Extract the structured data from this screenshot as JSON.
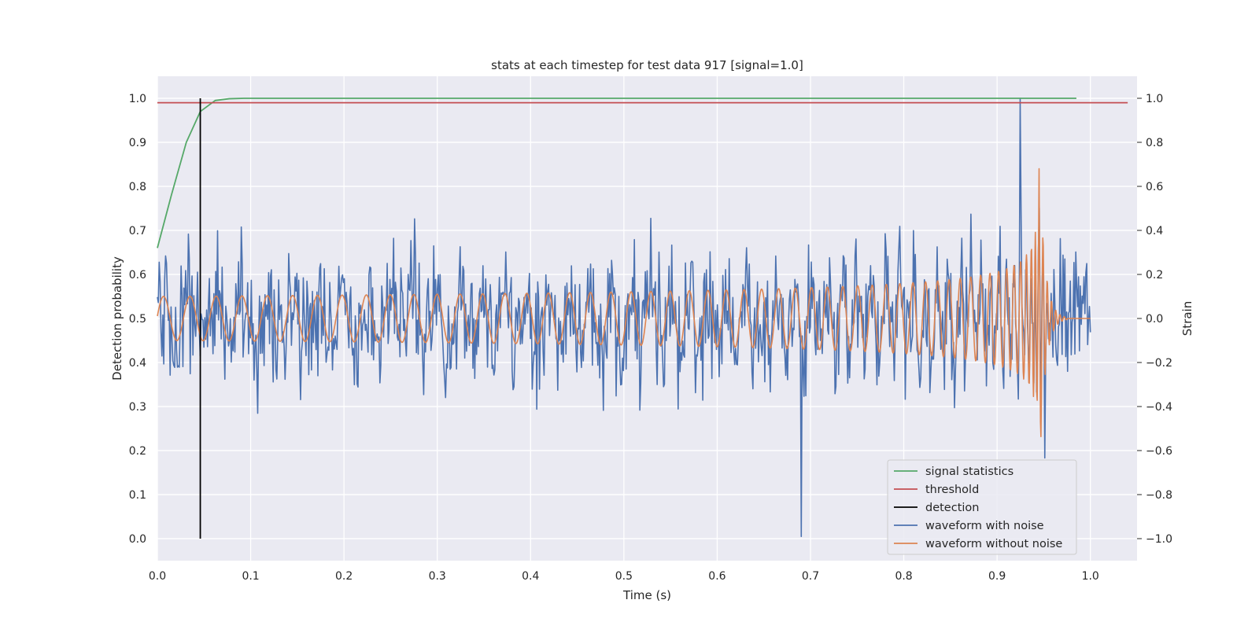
{
  "chart_data": {
    "type": "line",
    "title": "stats at each timestep for test data 917 [signal=1.0]",
    "xlabel": "Time (s)",
    "ylabel_left": "Detection probability",
    "ylabel_right": "Strain",
    "xlim": [
      0.0,
      1.05
    ],
    "ylim_left": [
      -0.05,
      1.05
    ],
    "ylim_right": [
      -1.1,
      1.1
    ],
    "x_ticks": [
      "0.0",
      "0.1",
      "0.2",
      "0.3",
      "0.4",
      "0.5",
      "0.6",
      "0.7",
      "0.8",
      "0.9",
      "1.0"
    ],
    "y_ticks_left": [
      "0.0",
      "0.1",
      "0.2",
      "0.3",
      "0.4",
      "0.5",
      "0.6",
      "0.7",
      "0.8",
      "0.9",
      "1.0"
    ],
    "y_ticks_right": [
      "−1.0",
      "−0.8",
      "−0.6",
      "−0.4",
      "−0.2",
      "0.0",
      "0.2",
      "0.4",
      "0.6",
      "0.8",
      "1.0"
    ],
    "grid": true,
    "legend_position": "bottom-right",
    "colors": {
      "signal_statistics": "#55a868",
      "threshold": "#c44e52",
      "detection": "#000000",
      "waveform_with_noise": "#4c72b0",
      "waveform_without_noise": "#dd8452",
      "axes_background": "#eaeaf2",
      "grid": "#ffffff"
    },
    "series": [
      {
        "name": "signal statistics",
        "axis": "left",
        "x": [
          0.0,
          0.015,
          0.031,
          0.046,
          0.062,
          0.077,
          0.093,
          0.108,
          0.5,
          0.985
        ],
        "y": [
          0.66,
          0.78,
          0.9,
          0.97,
          0.995,
          0.999,
          1.0,
          1.0,
          1.0,
          1.0
        ]
      },
      {
        "name": "threshold",
        "axis": "left",
        "x": [
          0.0,
          1.04
        ],
        "y": [
          0.99,
          0.99
        ]
      },
      {
        "name": "detection",
        "axis": "left",
        "x": [
          0.046,
          0.046
        ],
        "y": [
          0.0,
          1.0
        ]
      },
      {
        "name": "waveform with noise",
        "axis": "right",
        "type": "noisy-waveform",
        "x_range": [
          0.0,
          1.0
        ],
        "samples": 1024,
        "noise_std": 0.28,
        "peak": {
          "x": 0.925,
          "y": 1.0
        },
        "trough": {
          "x": 0.69,
          "y": -0.99
        }
      },
      {
        "name": "waveform without noise",
        "axis": "right",
        "type": "chirp",
        "x_range": [
          0.0,
          1.0
        ],
        "start_amplitude": 0.1,
        "start_frequency_hz": 35,
        "merger_time": 0.945,
        "peak_amplitude": 0.75,
        "min_value": -0.6,
        "ringdown_end": 0.975
      }
    ]
  }
}
